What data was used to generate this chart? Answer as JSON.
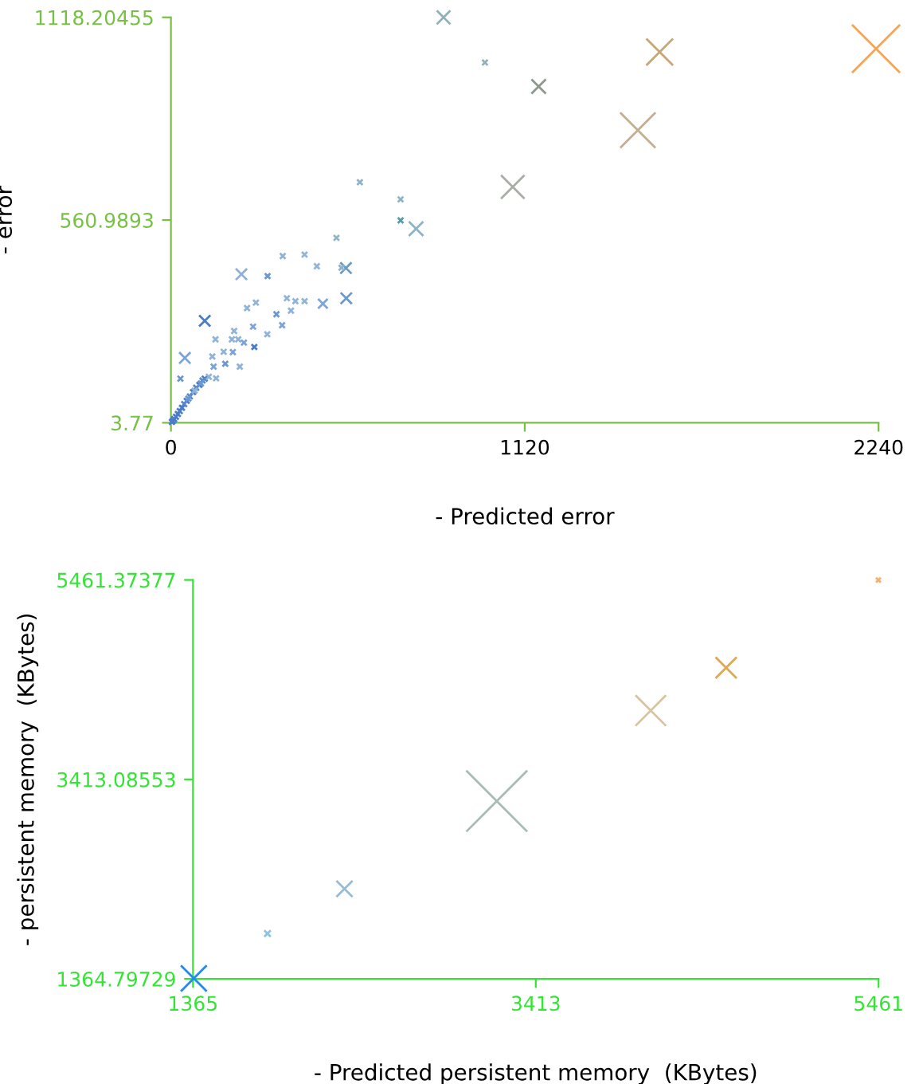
{
  "chart_data": [
    {
      "type": "bubble",
      "xlabel": "- Predicted error",
      "ylabel": "- error",
      "marker": "cross",
      "grid": false,
      "xlim": [
        0,
        2240
      ],
      "ylim": [
        3.77,
        1118.20455
      ],
      "xticks": [
        0,
        1120,
        2240
      ],
      "yticks": [
        3.77,
        560.9893,
        1118.20455
      ],
      "x": [
        2232,
        1547,
        1478,
        863,
        994,
        1164,
        1082,
        776,
        727,
        727,
        598,
        524,
        554,
        540,
        462,
        423,
        354,
        306,
        223,
        555,
        481,
        423,
        394,
        367,
        380,
        334,
        352,
        269,
        241,
        260,
        305,
        107,
        200,
        141,
        193,
        213,
        231,
        264,
        167,
        196,
        131,
        44,
        172,
        218,
        135,
        143,
        30,
        107,
        100,
        90,
        80,
        70,
        60,
        50,
        42,
        35,
        28,
        22,
        16,
        10,
        6,
        3,
        120,
        95,
        75,
        55
      ],
      "values": [
        1032,
        1023,
        808,
        1118,
        994,
        928,
        652,
        537,
        560,
        618,
        665,
        512,
        429,
        430,
        434,
        466,
        462,
        407,
        412,
        346,
        331,
        338,
        338,
        346,
        312,
        302,
        272,
        334,
        319,
        268,
        247,
        284,
        256,
        233,
        233,
        233,
        224,
        212,
        199,
        198,
        186,
        182,
        166,
        158,
        158,
        126,
        125,
        125,
        120,
        108,
        100,
        88,
        76,
        64,
        55,
        45,
        36,
        28,
        20,
        14,
        9,
        6,
        130,
        112,
        92,
        70
      ],
      "sizes": [
        1,
        0.31,
        0.54,
        0.08,
        0.013,
        0.09,
        0.24,
        0.09,
        0.013,
        0.013,
        0.013,
        0.013,
        0.055,
        0.013,
        0.013,
        0.013,
        0.013,
        0.013,
        0.055,
        0.055,
        0.04,
        0.013,
        0.013,
        0.013,
        0.013,
        0.013,
        0.013,
        0.013,
        0.013,
        0.013,
        0.013,
        0.055,
        0.013,
        0.013,
        0.013,
        0.013,
        0.013,
        0.013,
        0.013,
        0.013,
        0.013,
        0.055,
        0.013,
        0.013,
        0.013,
        0.013,
        0.013,
        0.013,
        0.013,
        0.013,
        0.013,
        0.013,
        0.013,
        0.013,
        0.013,
        0.013,
        0.013,
        0.013,
        0.013,
        0.013,
        0.013,
        0.013,
        0.013,
        0.013,
        0.013,
        0.013
      ],
      "colors": [
        "#f5a555",
        "#c9a678",
        "#c4b090",
        "#8fb0b8",
        "#8fb0b8",
        "#8a9a8c",
        "#a8aea6",
        "#8fb4c8",
        "#5a9aaa",
        "#8fb4c8",
        "#8fb4c8",
        "#8fb4c8",
        "#6a9ac8",
        "#8fb4c8",
        "#8fb4d8",
        "#8fb4d8",
        "#8fb4d8",
        "#6a98d0",
        "#8fb0d8",
        "#6a98d0",
        "#7fa6d6",
        "#8fb4d8",
        "#8fb4d8",
        "#8fb4d8",
        "#8fb4d8",
        "#6a98d0",
        "#7aa4d8",
        "#8fb4d8",
        "#8fb4d8",
        "#7aa4d8",
        "#8fb4d8",
        "#4a7cc8",
        "#8fb4d8",
        "#8fb4d8",
        "#8fb4d8",
        "#8fb4d8",
        "#7aa4d8",
        "#4a7cc8",
        "#8fb4d8",
        "#7aa4d8",
        "#8fb4d8",
        "#7aa4d8",
        "#6a98d0",
        "#8fb4d8",
        "#7aa4d8",
        "#8fb4d8",
        "#6a98d0",
        "#4a7cc8",
        "#5a88cc",
        "#4a7cc8",
        "#5a88cc",
        "#4a7cc8",
        "#5a88cc",
        "#4a7cc8",
        "#5a88cc",
        "#4a7cc8",
        "#4a7cc8",
        "#4a7cc8",
        "#4a7cc8",
        "#4a7cc8",
        "#4a7cc8",
        "#4a7cc8",
        "#8fb4d8",
        "#6a98d0",
        "#8fb4d8",
        "#6a98d0"
      ]
    },
    {
      "type": "bubble",
      "xlabel": "- Predicted persistent memory  (KBytes)",
      "ylabel": "- persistent memory  (KBytes)",
      "marker": "cross",
      "grid": false,
      "xlim": [
        1365,
        5461
      ],
      "ylim": [
        1364.79729,
        5461.37377
      ],
      "xticks": [
        1365,
        3413,
        5461
      ],
      "yticks": [
        1364.79729,
        3413.08553,
        5461.37377
      ],
      "x": [
        1370,
        1810,
        2270,
        3180,
        4100,
        4550,
        5460
      ],
      "values": [
        1370,
        1830,
        2290,
        3190,
        4120,
        4560,
        5460
      ],
      "sizes": [
        0.18,
        0.011,
        0.07,
        1,
        0.25,
        0.12,
        0.006
      ],
      "colors": [
        "#1e8cf0",
        "#8cc4e8",
        "#98bcd4",
        "#a8bcb4",
        "#d8c4a0",
        "#e0a850",
        "#f5b070"
      ]
    }
  ]
}
